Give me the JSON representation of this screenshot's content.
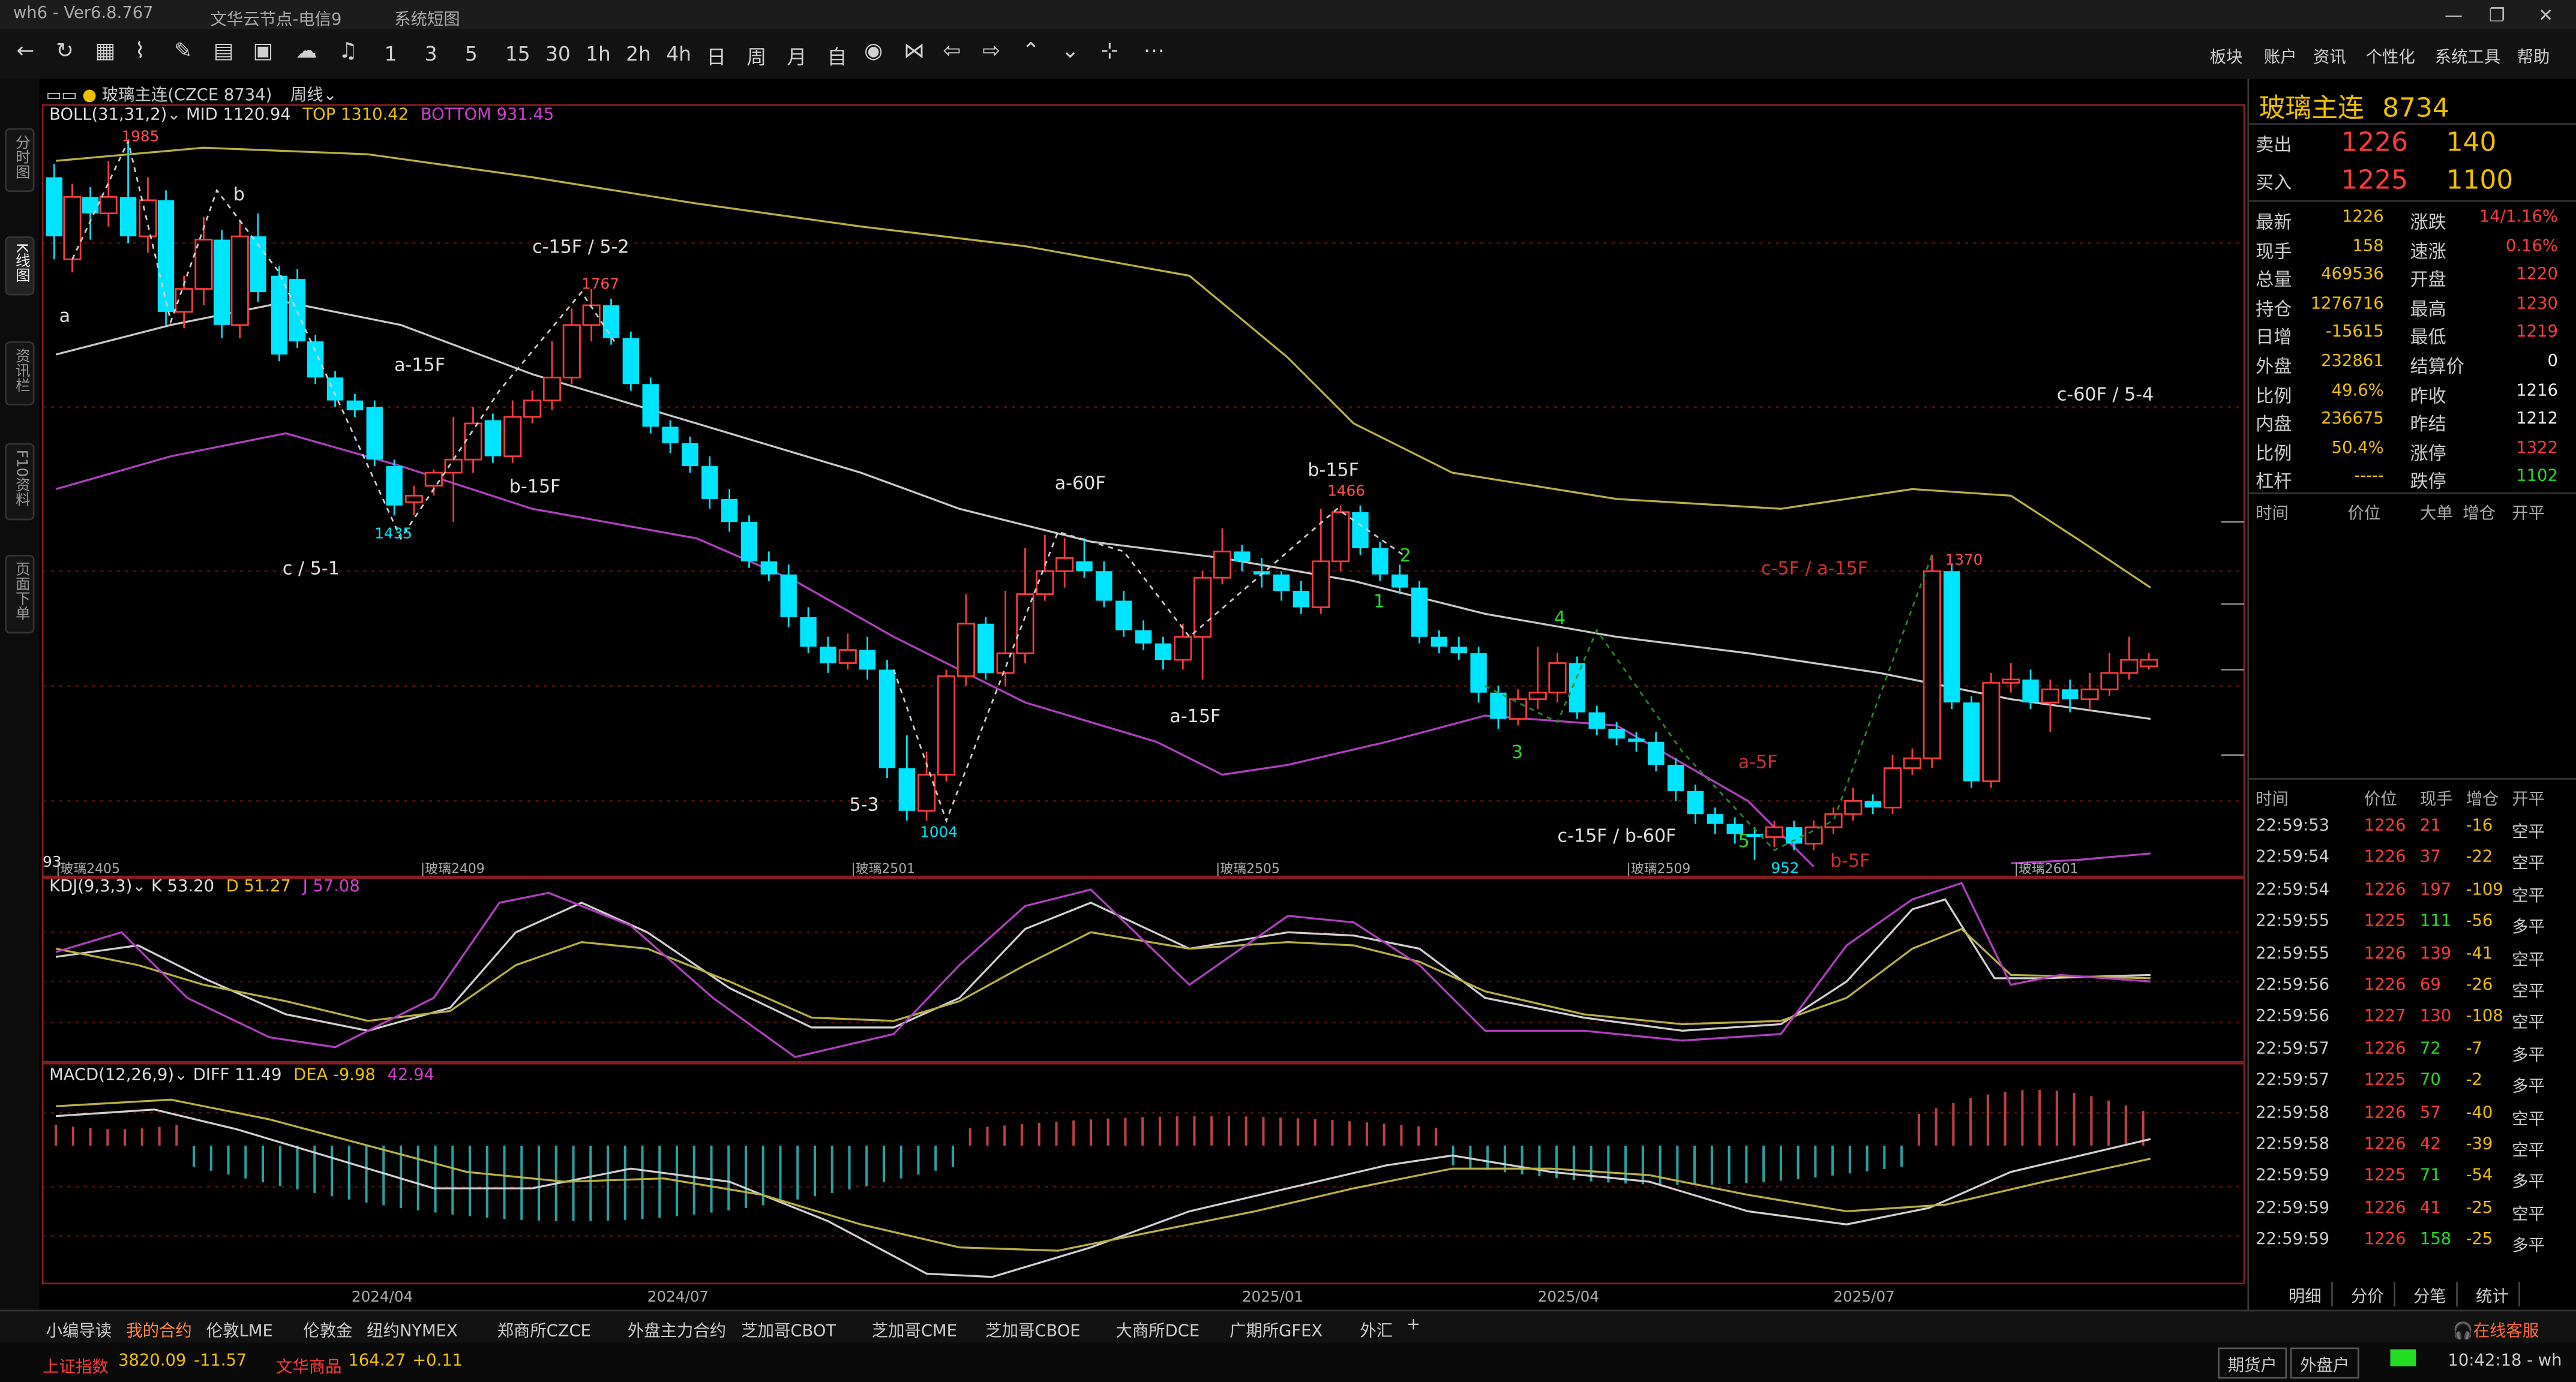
{
  "titlebar": {
    "app": "wh6  -  Ver6.8.767",
    "server": "文华云节点-电信9",
    "menu": "系统短图"
  },
  "toolbar": {
    "periods": [
      "1",
      "3",
      "5",
      "15",
      "30",
      "1h",
      "2h",
      "4h",
      "日",
      "周",
      "月",
      "自"
    ],
    "right_menu": [
      "板块",
      "账户",
      "资讯",
      "个性化",
      "系统工具",
      "帮助"
    ]
  },
  "sidebar": {
    "tabs": [
      "分时图",
      "K线图",
      "资讯栏",
      "F10资料",
      "页面下单"
    ]
  },
  "chart_header": {
    "symbol": "玻璃主连(CZCE 8734)",
    "period": "周线",
    "boll_label": "BOLL(31,31,2)",
    "boll_mid": "MID 1120.94",
    "boll_top": "TOP 1310.42",
    "boll_bottom": "BOTTOM 931.45",
    "kdj_label": "KDJ(9,3,3)",
    "kdj_k": "K 53.20",
    "kdj_d": "D 51.27",
    "kdj_j": "J 57.08",
    "macd_label": "MACD(12,26,9)",
    "macd_diff": "DIFF 11.49",
    "macd_dea": "DEA -9.98",
    "macd_val": "42.94",
    "mark93": "93"
  },
  "chart_data": {
    "type": "candlestick",
    "price_range": [
      930,
      2010
    ],
    "annotations": [
      {
        "text": "1985",
        "kind": "high"
      },
      {
        "text": "a",
        "kind": "wave"
      },
      {
        "text": "b",
        "kind": "wave"
      },
      {
        "text": "c-15F / 5-2",
        "kind": "wave"
      },
      {
        "text": "1767",
        "kind": "high"
      },
      {
        "text": "a-15F",
        "kind": "wave"
      },
      {
        "text": "b-15F",
        "kind": "wave"
      },
      {
        "text": "1435",
        "kind": "low"
      },
      {
        "text": "c / 5-1",
        "kind": "wave"
      },
      {
        "text": "a-60F",
        "kind": "wave"
      },
      {
        "text": "b-15F",
        "kind": "wave"
      },
      {
        "text": "1466",
        "kind": "high"
      },
      {
        "text": "a-15F",
        "kind": "wave"
      },
      {
        "text": "5-3",
        "kind": "wave"
      },
      {
        "text": "1004",
        "kind": "low"
      },
      {
        "text": "2",
        "kind": "green"
      },
      {
        "text": "1",
        "kind": "green"
      },
      {
        "text": "4",
        "kind": "green"
      },
      {
        "text": "3",
        "kind": "green"
      },
      {
        "text": "5",
        "kind": "green"
      },
      {
        "text": "c-5F / a-15F",
        "kind": "red"
      },
      {
        "text": "1370",
        "kind": "high"
      },
      {
        "text": "a-5F",
        "kind": "red"
      },
      {
        "text": "b-5F",
        "kind": "red"
      },
      {
        "text": "c-15F / b-60F",
        "kind": "wave"
      },
      {
        "text": "952",
        "kind": "low"
      },
      {
        "text": "c-60F / 5-4",
        "kind": "wave"
      }
    ],
    "contract_labels": [
      "玻璃2405",
      "玻璃2409",
      "玻璃2501",
      "玻璃2505",
      "玻璃2509",
      "玻璃2601"
    ],
    "x_axis": [
      "2024/04",
      "2024/07",
      "2025/01",
      "2025/04",
      "2025/07"
    ]
  },
  "quote": {
    "title": "玻璃主连",
    "code": "8734",
    "sell_label": "卖出",
    "sell_price": "1226",
    "sell_vol": "140",
    "buy_label": "买入",
    "buy_price": "1225",
    "buy_vol": "1100",
    "rows": [
      [
        "最新",
        "1226",
        "涨跌",
        "14/1.16%"
      ],
      [
        "现手",
        "158",
        "速涨",
        "0.16%"
      ],
      [
        "总量",
        "469536",
        "开盘",
        "1220"
      ],
      [
        "持仓",
        "1276716",
        "最高",
        "1230"
      ],
      [
        "日增",
        "-15615",
        "最低",
        "1219"
      ],
      [
        "外盘",
        "232861",
        "结算价",
        "0"
      ],
      [
        "比例",
        "49.6%",
        "昨收",
        "1216"
      ],
      [
        "内盘",
        "236675",
        "昨结",
        "1212"
      ],
      [
        "比例",
        "50.4%",
        "涨停",
        "1322"
      ],
      [
        "杠杆",
        "-----",
        "跌停",
        "1102"
      ]
    ],
    "ticks_header": [
      "时间",
      "价位",
      "大单",
      "增仓",
      "开平"
    ],
    "trades_header": [
      "时间",
      "价位",
      "现手",
      "增仓",
      "开平"
    ],
    "trades": [
      [
        "22:59:53",
        "1226",
        "21",
        "-16",
        "空平"
      ],
      [
        "22:59:54",
        "1226",
        "37",
        "-22",
        "空平"
      ],
      [
        "22:59:54",
        "1226",
        "197",
        "-109",
        "空平"
      ],
      [
        "22:59:55",
        "1225",
        "111",
        "-56",
        "多平"
      ],
      [
        "22:59:55",
        "1226",
        "139",
        "-41",
        "空平"
      ],
      [
        "22:59:56",
        "1226",
        "69",
        "-26",
        "空平"
      ],
      [
        "22:59:56",
        "1227",
        "130",
        "-108",
        "空平"
      ],
      [
        "22:59:57",
        "1226",
        "72",
        "-7",
        "多平"
      ],
      [
        "22:59:57",
        "1225",
        "70",
        "-2",
        "多平"
      ],
      [
        "22:59:58",
        "1226",
        "57",
        "-40",
        "空平"
      ],
      [
        "22:59:58",
        "1226",
        "42",
        "-39",
        "空平"
      ],
      [
        "22:59:59",
        "1225",
        "71",
        "-54",
        "多平"
      ],
      [
        "22:59:59",
        "1226",
        "41",
        "-25",
        "空平"
      ],
      [
        "22:59:59",
        "1226",
        "158",
        "-25",
        "多平"
      ]
    ],
    "bottom_tabs": [
      "明细",
      "分价",
      "分笔",
      "统计"
    ]
  },
  "bottom_tabs": [
    "小编导读",
    "我的合约",
    "伦敦LME",
    "伦敦金",
    "纽约NYMEX",
    "郑商所CZCE",
    "外盘主力合约",
    "芝加哥CBOT",
    "芝加哥CME",
    "芝加哥CBOE",
    "大商所DCE",
    "广期所GFEX",
    "外汇",
    "+"
  ],
  "status": {
    "index_label": "上证指数",
    "index_val": "3820.09",
    "index_chg": "-11.57",
    "goods_label": "文华商品",
    "goods_val": "164.27",
    "goods_chg": "+0.11",
    "service": "在线客服",
    "btn1": "期货户",
    "btn2": "外盘户",
    "time": "10:42:18 - wh"
  },
  "colors": {
    "up": "#ff3b3b",
    "down": "#00e5ff",
    "mid": "#c8c8c8",
    "top": "#b8b040",
    "bottom": "#b040c0",
    "yellow": "#f0c000",
    "green": "#22dd22"
  }
}
